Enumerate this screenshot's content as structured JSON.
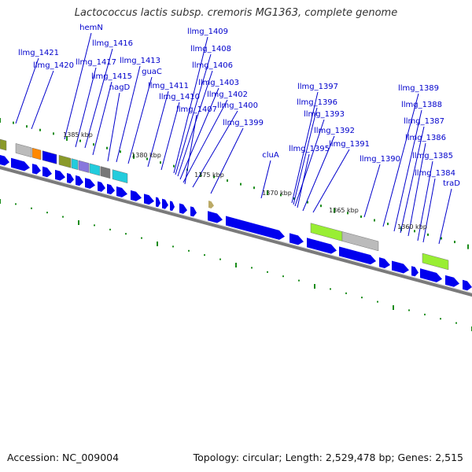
{
  "header": {
    "title": "Lactococcus lactis subsp. cremoris MG1363, complete genome"
  },
  "footer": {
    "accession": "Accession: NC_009004",
    "summary": "Topology: circular; Length: 2,529,478 bp; Genes: 2,515"
  },
  "colors": {
    "gene": "#0000ee",
    "label": "#0000cc",
    "leader": "#0000cc",
    "backbone": "#7a7a7a",
    "tick": "#1a8c1a",
    "rna_green": "#99ee33",
    "pseudo_gray": "#bbbbbb",
    "cyan": "#22ccdd",
    "olive": "#8a9a2a",
    "orange": "#ff8800",
    "purple": "#8877dd",
    "khaki": "#bbaa66"
  },
  "gene_labels": [
    "llmg_1421",
    "llmg_1420",
    "hemN",
    "llmg_1416",
    "llmg_1417",
    "llmg_1415",
    "nagD",
    "llmg_1413",
    "guaC",
    "llmg_1411",
    "llmg_1410",
    "llmg_1409",
    "llmg_1408",
    "llmg_1406",
    "llmg_1403",
    "llmg_1402",
    "llmg_1407",
    "llmg_1400",
    "llmg_1399",
    "cluA",
    "llmg_1397",
    "llmg_1396",
    "llmg_1393",
    "llmg_1395",
    "llmg_1392",
    "llmg_1391",
    "llmg_1390",
    "llmg_1389",
    "llmg_1388",
    "llmg_1387",
    "llmg_1386",
    "llmg_1385",
    "llmg_1384",
    "traD"
  ],
  "kbp_labels": [
    "1385 kbp",
    "1380 kbp",
    "1375 kbp",
    "1370 kbp",
    "1365 kbp",
    "1360 kbp"
  ]
}
